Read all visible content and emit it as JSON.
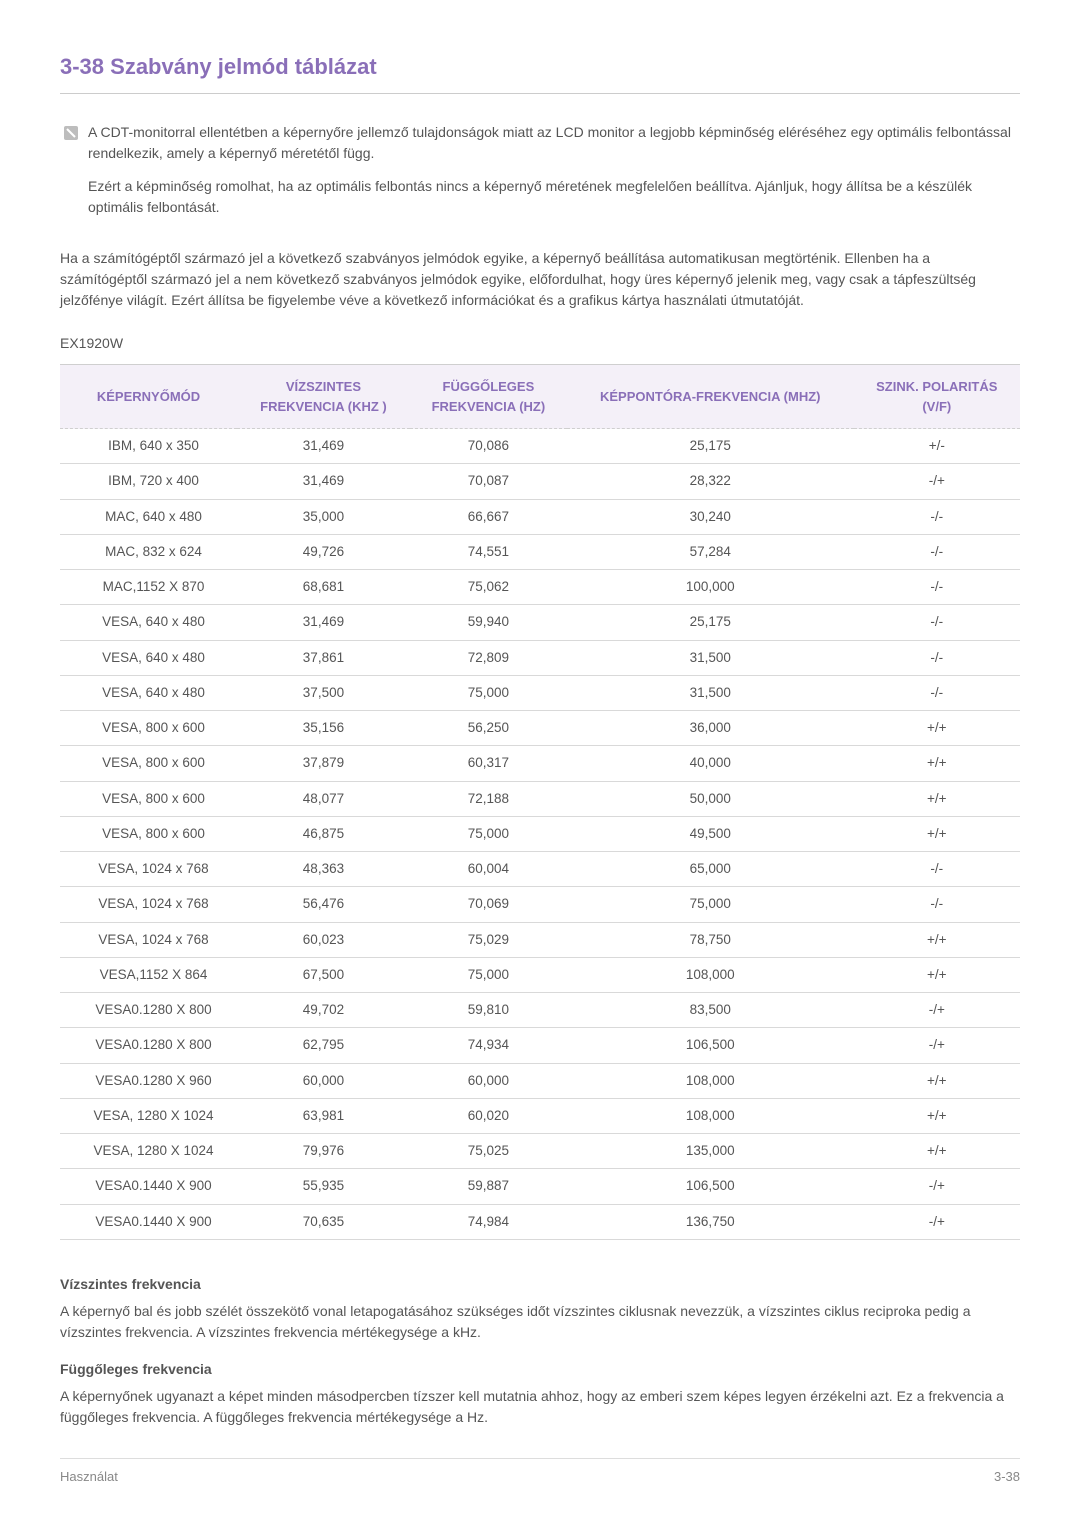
{
  "title": "3-38   Szabvány jelmód táblázat",
  "note": {
    "p1": "A CDT-monitorral ellentétben a képernyőre jellemző tulajdonságok miatt az LCD monitor a legjobb képminőség eléréséhez egy optimális felbontással rendelkezik, amely a képernyő méretétől függ.",
    "p2": "Ezért a képminőség romolhat, ha az optimális felbontás nincs a képernyő méretének megfelelően beállítva. Ajánljuk, hogy állítsa be a készülék optimális felbontását."
  },
  "body_para": "Ha a számítógéptől származó jel a következő szabványos jelmódok egyike, a képernyő beállítása automatikusan megtörténik. Ellenben ha a számítógéptől származó jel a nem következő szabványos jelmódok egyike, előfordulhat, hogy üres képernyő jelenik meg, vagy csak a tápfeszültség jelzőfénye világít. Ezért állítsa be figyelembe véve a következő információkat és a grafikus kártya használati útmutatóját.",
  "model": "EX1920W",
  "table": {
    "columns": [
      "KÉPERNYŐMÓD",
      "VÍZSZINTES FREKVENCIA (KHZ )",
      "FÜGGŐLEGES FREKVENCIA (HZ)",
      "KÉPPONTÓRA-FREKVENCIA (MHZ)",
      "SZINK. POLARITÁS (V/F)"
    ],
    "rows": [
      [
        "IBM, 640 x 350",
        "31,469",
        "70,086",
        "25,175",
        "+/-"
      ],
      [
        "IBM, 720 x 400",
        "31,469",
        "70,087",
        "28,322",
        "-/+"
      ],
      [
        "MAC, 640 x 480",
        "35,000",
        "66,667",
        "30,240",
        "-/-"
      ],
      [
        "MAC, 832 x 624",
        "49,726",
        "74,551",
        "57,284",
        "-/-"
      ],
      [
        "MAC,1152 X 870",
        "68,681",
        "75,062",
        "100,000",
        "-/-"
      ],
      [
        "VESA, 640 x 480",
        "31,469",
        "59,940",
        "25,175",
        "-/-"
      ],
      [
        "VESA, 640 x 480",
        "37,861",
        "72,809",
        "31,500",
        "-/-"
      ],
      [
        "VESA, 640 x 480",
        "37,500",
        "75,000",
        "31,500",
        "-/-"
      ],
      [
        "VESA, 800 x 600",
        "35,156",
        "56,250",
        "36,000",
        "+/+"
      ],
      [
        "VESA, 800 x 600",
        "37,879",
        "60,317",
        "40,000",
        "+/+"
      ],
      [
        "VESA, 800 x 600",
        "48,077",
        "72,188",
        "50,000",
        "+/+"
      ],
      [
        "VESA, 800 x 600",
        "46,875",
        "75,000",
        "49,500",
        "+/+"
      ],
      [
        "VESA, 1024 x 768",
        "48,363",
        "60,004",
        "65,000",
        "-/-"
      ],
      [
        "VESA, 1024 x 768",
        "56,476",
        "70,069",
        "75,000",
        "-/-"
      ],
      [
        "VESA, 1024 x 768",
        "60,023",
        "75,029",
        "78,750",
        "+/+"
      ],
      [
        "VESA,1152 X 864",
        "67,500",
        "75,000",
        "108,000",
        "+/+"
      ],
      [
        "VESA0.1280 X 800",
        "49,702",
        "59,810",
        "83,500",
        "-/+"
      ],
      [
        "VESA0.1280 X 800",
        "62,795",
        "74,934",
        "106,500",
        "-/+"
      ],
      [
        "VESA0.1280 X 960",
        "60,000",
        "60,000",
        "108,000",
        "+/+"
      ],
      [
        "VESA, 1280 X 1024",
        "63,981",
        "60,020",
        "108,000",
        "+/+"
      ],
      [
        "VESA, 1280 X 1024",
        "79,976",
        "75,025",
        "135,000",
        "+/+"
      ],
      [
        "VESA0.1440 X 900",
        "55,935",
        "59,887",
        "106,500",
        "-/+"
      ],
      [
        "VESA0.1440 X 900",
        "70,635",
        "74,984",
        "136,750",
        "-/+"
      ]
    ]
  },
  "defs": {
    "h1": "Vízszintes frekvencia",
    "p1": "A képernyő bal és jobb szélét összekötő vonal letapogatásához szükséges időt vízszintes ciklusnak nevezzük, a vízszintes ciklus reciproka pedig a vízszintes frekvencia. A vízszintes frekvencia mértékegysége a kHz.",
    "h2": "Függőleges frekvencia",
    "p2": "A képernyőnek ugyanazt a képet minden másodpercben tízszer kell mutatnia ahhoz, hogy az emberi szem képes legyen érzékelni azt. Ez a frekvencia a függőleges frekvencia. A függőleges frekvencia mértékegysége a Hz."
  },
  "footer": {
    "left": "Használat",
    "right": "3-38"
  },
  "colors": {
    "accent": "#8a6fb8",
    "header_bg": "#f4f0f8",
    "text": "#555555",
    "border": "#d9d9d9"
  }
}
